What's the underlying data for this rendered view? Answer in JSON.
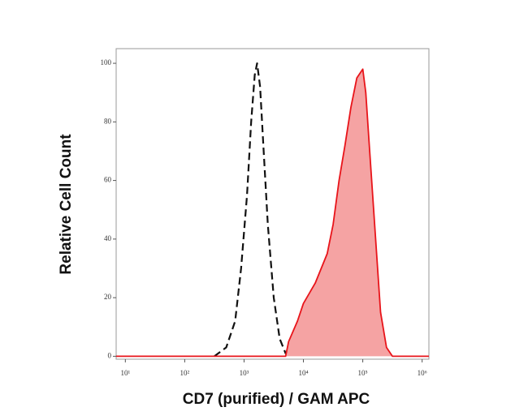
{
  "chart_data": {
    "type": "line",
    "x_label": "CD7 (purified) / GAM APC",
    "y_label": "Relative Cell Count",
    "xscale": "log",
    "xlim": [
      7,
      1300000
    ],
    "ylim": [
      -1,
      105
    ],
    "xticks": [
      {
        "value": 10,
        "label": "10¹"
      },
      {
        "value": 100,
        "label": "10²"
      },
      {
        "value": 1000,
        "label": "10³"
      },
      {
        "value": 10000,
        "label": "10⁴"
      },
      {
        "value": 100000,
        "label": "10⁵"
      },
      {
        "value": 1000000,
        "label": "10⁶"
      }
    ],
    "yticks": [
      0,
      20,
      40,
      60,
      80,
      100
    ],
    "series": [
      {
        "color": "#111111",
        "dash": true,
        "fill": null,
        "x": [
          316,
          500,
          708,
          891,
          1122,
          1318,
          1514,
          1660,
          1862,
          2138,
          2512,
          3162,
          3981,
          5012,
          6310
        ],
        "values": [
          0,
          3,
          12,
          30,
          55,
          80,
          96,
          100,
          92,
          70,
          45,
          20,
          6,
          1,
          0
        ]
      },
      {
        "color": "#e8141a",
        "dash": false,
        "fill": "#f5a3a3",
        "x": [
          7,
          100,
          1000,
          5012,
          5623,
          7943,
          10000,
          15849,
          25119,
          31623,
          39811,
          50119,
          63096,
          79433,
          100000,
          112202,
          125893,
          158489,
          199526,
          251189,
          316228,
          1300000
        ],
        "values": [
          0,
          0,
          0,
          0,
          5,
          12,
          18,
          25,
          35,
          45,
          60,
          72,
          85,
          95,
          98,
          90,
          75,
          45,
          15,
          3,
          0,
          0
        ]
      }
    ]
  }
}
